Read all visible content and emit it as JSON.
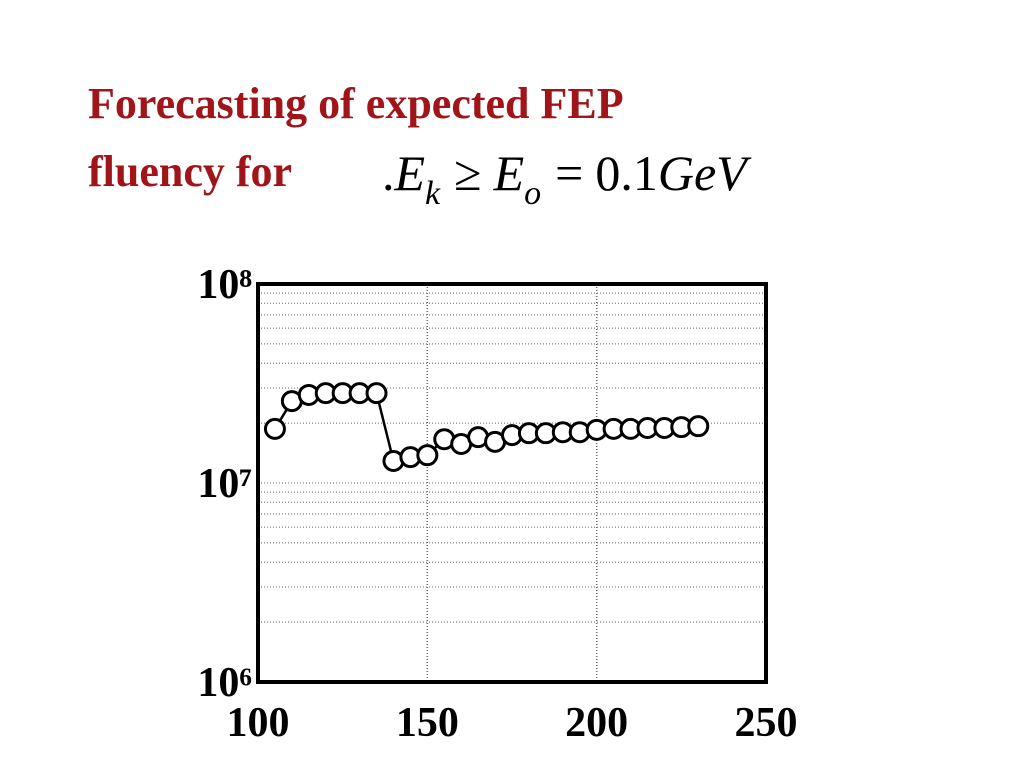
{
  "title_line1": "Forecasting of expected FEP",
  "title_line2": "fluency for",
  "formula": [
    ".",
    "E",
    "k",
    "≥",
    "E",
    "o",
    "=",
    "0.1",
    "GeV"
  ],
  "chart_data": {
    "type": "line",
    "x": [
      105,
      110,
      115,
      120,
      125,
      130,
      135,
      140,
      145,
      150,
      155,
      160,
      165,
      170,
      175,
      180,
      185,
      190,
      195,
      200,
      205,
      210,
      215,
      220,
      225,
      230
    ],
    "values": [
      18700000,
      25800000,
      27700000,
      28300000,
      28300000,
      28300000,
      28300000,
      12900000,
      13500000,
      13800000,
      16600000,
      15700000,
      17000000,
      16100000,
      17400000,
      17800000,
      17800000,
      18000000,
      18000000,
      18500000,
      18700000,
      18700000,
      18900000,
      18900000,
      19100000,
      19300000
    ],
    "color": "#000000",
    "xlim": [
      100,
      250
    ],
    "xticks": [
      100,
      150,
      200,
      250
    ],
    "ylim": [
      1000000,
      100000000
    ],
    "yticks": [
      {
        "value": 1000000,
        "label": "10⁶"
      },
      {
        "value": 10000000,
        "label": "10⁷"
      },
      {
        "value": 100000000,
        "label": "10⁸"
      }
    ],
    "log_y": true,
    "grid": true
  }
}
